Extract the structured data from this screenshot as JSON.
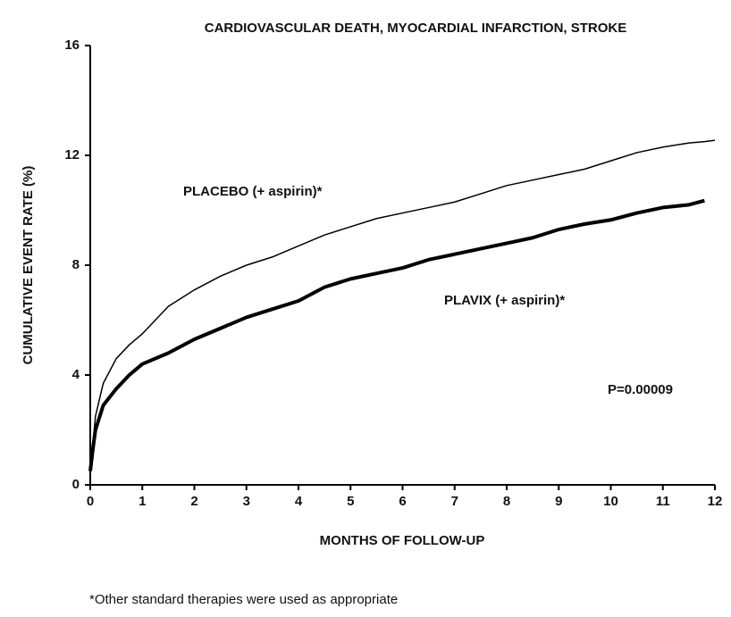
{
  "chart_data": {
    "type": "line",
    "title": "CARDIOVASCULAR DEATH, MYOCARDIAL INFARCTION, STROKE",
    "x_label": "MONTHS OF FOLLOW-UP",
    "y_label": "CUMULATIVE EVENT RATE (%)",
    "x": [
      0,
      0.05,
      0.1,
      0.25,
      0.5,
      0.75,
      1,
      1.5,
      2,
      2.5,
      3,
      3.5,
      4,
      4.5,
      5,
      5.5,
      6,
      6.5,
      7,
      7.5,
      8,
      8.5,
      9,
      9.5,
      10,
      10.5,
      11,
      11.5,
      11.8,
      12
    ],
    "series": [
      {
        "name": "PLACEBO (+ aspirin)*",
        "color": "#000000",
        "values": [
          0.5,
          1.5,
          2.5,
          3.7,
          4.6,
          5.1,
          5.5,
          6.5,
          7.1,
          7.6,
          8.0,
          8.3,
          8.7,
          9.1,
          9.4,
          9.7,
          9.9,
          10.1,
          10.3,
          10.6,
          10.9,
          11.1,
          11.3,
          11.5,
          11.8,
          12.1,
          12.3,
          12.45,
          12.5,
          12.55
        ]
      },
      {
        "name": "PLAVIX (+ aspirin)*",
        "color": "#000000",
        "values": [
          0.5,
          1.3,
          2.0,
          2.9,
          3.5,
          4.0,
          4.4,
          4.8,
          5.3,
          5.7,
          6.1,
          6.4,
          6.7,
          7.2,
          7.5,
          7.7,
          7.9,
          8.2,
          8.4,
          8.6,
          8.8,
          9.0,
          9.3,
          9.5,
          9.65,
          9.9,
          10.1,
          10.2,
          10.35,
          null
        ]
      }
    ],
    "xlim": [
      0,
      12
    ],
    "xticks": [
      0,
      1,
      2,
      3,
      4,
      5,
      6,
      7,
      8,
      9,
      10,
      11,
      12
    ],
    "ylim": [
      0,
      16
    ],
    "yticks": [
      0,
      4,
      8,
      12,
      16
    ],
    "grid": false,
    "annotations": [
      "P=0.00009"
    ],
    "footnote": "*Other standard therapies were used as appropriate"
  }
}
